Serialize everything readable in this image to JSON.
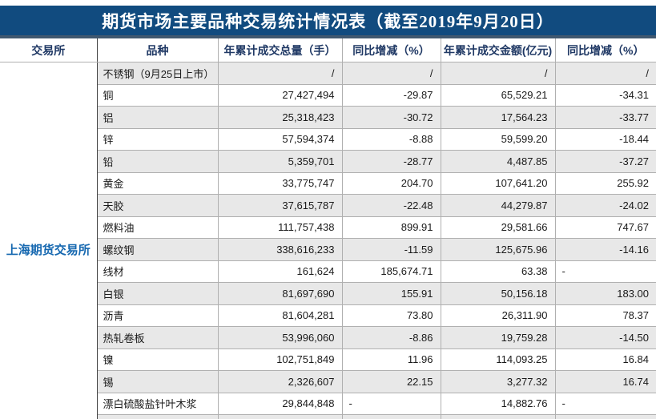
{
  "title": "期货市场主要品种交易统计情况表（截至2019年9月20日）",
  "colors": {
    "title_bar_bg": "#114B7F",
    "title_bar_strip": "#405870",
    "header_text": "#1F3864",
    "exchange_text": "#1668B0",
    "alt_row_bg": "#E8E8E8",
    "grid_line": "#B0B0B0"
  },
  "table": {
    "exchange": "上海期货交易所",
    "headers": {
      "exchange": "交易所",
      "variety": "品种",
      "volume": "年累计成交总量（手）",
      "volume_yoy": "同比增减（%）",
      "amount": "年累计成交金额(亿元)",
      "amount_yoy": "同比增减（%）"
    },
    "rows": [
      {
        "variety": "不锈钢（9月25日上市）",
        "volume": "/",
        "volume_yoy": "/",
        "amount": "/",
        "amount_yoy": "/"
      },
      {
        "variety": "铜",
        "volume": "27,427,494",
        "volume_yoy": "-29.87",
        "amount": "65,529.21",
        "amount_yoy": "-34.31"
      },
      {
        "variety": "铝",
        "volume": "25,318,423",
        "volume_yoy": "-30.72",
        "amount": "17,564.23",
        "amount_yoy": "-33.77"
      },
      {
        "variety": "锌",
        "volume": "57,594,374",
        "volume_yoy": "-8.88",
        "amount": "59,599.20",
        "amount_yoy": "-18.44"
      },
      {
        "variety": "铅",
        "volume": "5,359,701",
        "volume_yoy": "-28.77",
        "amount": "4,487.85",
        "amount_yoy": "-37.27"
      },
      {
        "variety": "黄金",
        "volume": "33,775,747",
        "volume_yoy": "204.70",
        "amount": "107,641.20",
        "amount_yoy": "255.92"
      },
      {
        "variety": "天胶",
        "volume": "37,615,787",
        "volume_yoy": "-22.48",
        "amount": "44,279.87",
        "amount_yoy": "-24.02"
      },
      {
        "variety": "燃料油",
        "volume": "111,757,438",
        "volume_yoy": "899.91",
        "amount": "29,581.66",
        "amount_yoy": "747.67"
      },
      {
        "variety": "螺纹钢",
        "volume": "338,616,233",
        "volume_yoy": "-11.59",
        "amount": "125,675.96",
        "amount_yoy": "-14.16"
      },
      {
        "variety": "线材",
        "volume": "161,624",
        "volume_yoy": "185,674.71",
        "amount": "63.38",
        "amount_yoy": "-"
      },
      {
        "variety": "白银",
        "volume": "81,697,690",
        "volume_yoy": "155.91",
        "amount": "50,156.18",
        "amount_yoy": "183.00"
      },
      {
        "variety": "沥青",
        "volume": "81,604,281",
        "volume_yoy": "73.80",
        "amount": "26,311.90",
        "amount_yoy": "78.37"
      },
      {
        "variety": "热轧卷板",
        "volume": "53,996,060",
        "volume_yoy": "-8.86",
        "amount": "19,759.28",
        "amount_yoy": "-14.50"
      },
      {
        "variety": "镍",
        "volume": "102,751,849",
        "volume_yoy": "11.96",
        "amount": "114,093.25",
        "amount_yoy": "16.84"
      },
      {
        "variety": "锡",
        "volume": "2,326,607",
        "volume_yoy": "22.15",
        "amount": "3,277.32",
        "amount_yoy": "16.74"
      },
      {
        "variety": "漂白硫酸盐针叶木浆",
        "volume": "29,844,848",
        "volume_yoy": "-",
        "amount": "14,882.76",
        "amount_yoy": "-"
      }
    ]
  }
}
